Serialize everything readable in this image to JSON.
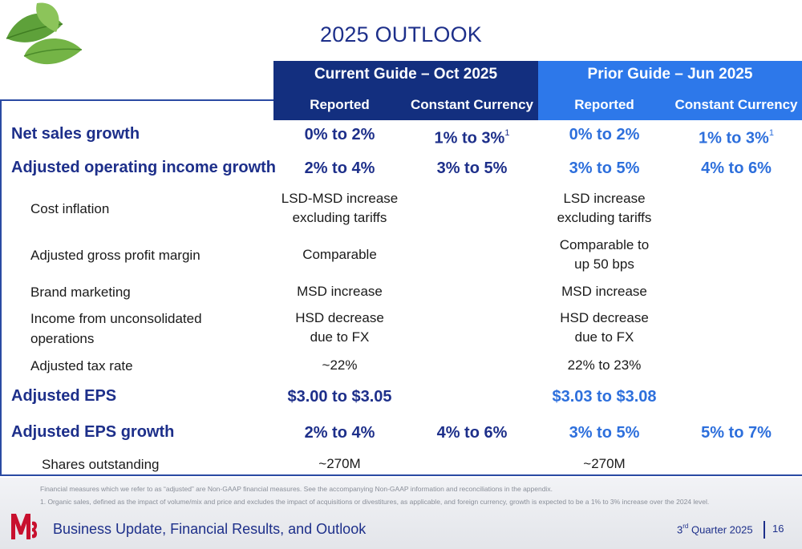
{
  "title": "2025 OUTLOOK",
  "header": {
    "current_group": "Current Guide – Oct 2025",
    "prior_group": "Prior Guide – Jun 2025",
    "sub": [
      "Reported",
      "Constant Currency",
      "Reported",
      "Constant Currency"
    ]
  },
  "rows": [
    {
      "label": "Net sales growth",
      "c1": "0% to 2%",
      "c2": "1% to 3%",
      "c2_sup": "1",
      "c3": "0% to 2%",
      "c4": "1% to 3%",
      "c4_sup": "1"
    },
    {
      "label": "Adjusted operating income growth",
      "c1": "2% to 4%",
      "c2": "3% to 5%",
      "c3": "3% to 5%",
      "c4": "4% to 6%"
    },
    {
      "label": "Cost inflation",
      "c1a": "LSD-MSD increase",
      "c1b": "excluding tariffs",
      "c3a": "LSD increase",
      "c3b": "excluding tariffs"
    },
    {
      "label": "Adjusted gross profit margin",
      "c1": "Comparable",
      "c3a": "Comparable to",
      "c3b": "up 50 bps"
    },
    {
      "label": "Brand marketing",
      "c1": "MSD increase",
      "c3": "MSD increase"
    },
    {
      "label_a": "Income from unconsolidated",
      "label_b": "operations",
      "c1a": "HSD decrease",
      "c1b": "due to FX",
      "c3a": "HSD decrease",
      "c3b": "due to FX"
    },
    {
      "label": "Adjusted tax rate",
      "c1": "~22%",
      "c3": "22% to 23%"
    },
    {
      "label": "Adjusted EPS",
      "c1": "$3.00 to $3.05",
      "c3": "$3.03 to $3.08"
    },
    {
      "label": "Adjusted EPS growth",
      "c1": "2% to 4%",
      "c2": "4% to 6%",
      "c3": "3% to 5%",
      "c4": "5% to 7%"
    },
    {
      "label": "Shares outstanding",
      "c1": "~270M",
      "c3": "~270M"
    }
  ],
  "footnotes": {
    "line1": "Financial measures which we refer to as “adjusted” are Non-GAAP financial measures. See the accompanying Non-GAAP information and reconciliations in the appendix.",
    "line2": "1. Organic sales, defined as the impact of volume/mix and price and excludes the impact of acquisitions or divestitures, as applicable, and foreign currency, growth is expected to be a 1% to 3% increase over the 2024 level."
  },
  "footer": {
    "title": "Business Update, Financial Results, and Outlook",
    "quarter_prefix": "3",
    "quarter_sup": "rd",
    "quarter_suffix": " Quarter 2025",
    "page": "16"
  },
  "colors": {
    "navy": "#1d2f8a",
    "current_header": "#132f7f",
    "prior_header": "#2d78ea",
    "prior_text": "#2d6fdc"
  },
  "icons": {
    "leaf": "basil-leaf-icon",
    "logo": "mccormick-logo"
  }
}
